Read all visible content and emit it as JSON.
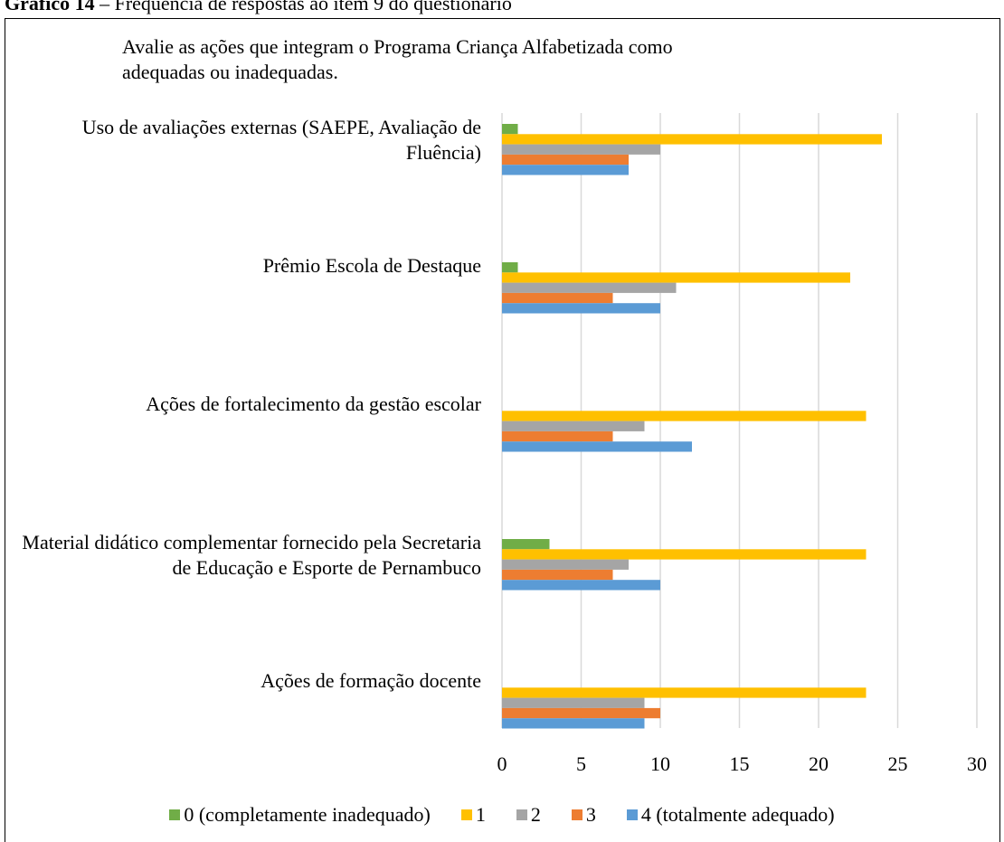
{
  "caption_label": "Gráfico 14",
  "caption": "– Frequência de respostas ao item 9 do questionário",
  "chart_data": {
    "type": "bar",
    "orientation": "horizontal",
    "title": "Avalie as ações que integram o Programa Criança Alfabetizada como adequadas ou inadequadas.",
    "categories": [
      "Uso de avaliações externas (SAEPE, Avaliação de Fluência)",
      "Prêmio Escola de Destaque",
      "Ações de fortalecimento da gestão escolar",
      "Material didático complementar fornecido pela Secretaria de Educação e Esporte de Pernambuco",
      "Ações de formação docente"
    ],
    "series": [
      {
        "name": "0 (completamente inadequado)",
        "color": "#70ad47",
        "values": [
          1,
          1,
          0,
          3,
          0
        ]
      },
      {
        "name": "1",
        "color": "#ffc000",
        "values": [
          24,
          22,
          23,
          23,
          23
        ]
      },
      {
        "name": "2",
        "color": "#a5a5a5",
        "values": [
          10,
          11,
          9,
          8,
          9
        ]
      },
      {
        "name": "3",
        "color": "#ed7d31",
        "values": [
          8,
          7,
          7,
          7,
          10
        ]
      },
      {
        "name": "4 (totalmente adequado)",
        "color": "#5b9bd5",
        "values": [
          8,
          10,
          12,
          10,
          9
        ]
      }
    ],
    "xlim": [
      0,
      30
    ],
    "xticks": [
      0,
      5,
      10,
      15,
      20,
      25,
      30
    ],
    "grid": true,
    "legend": "bottom"
  }
}
